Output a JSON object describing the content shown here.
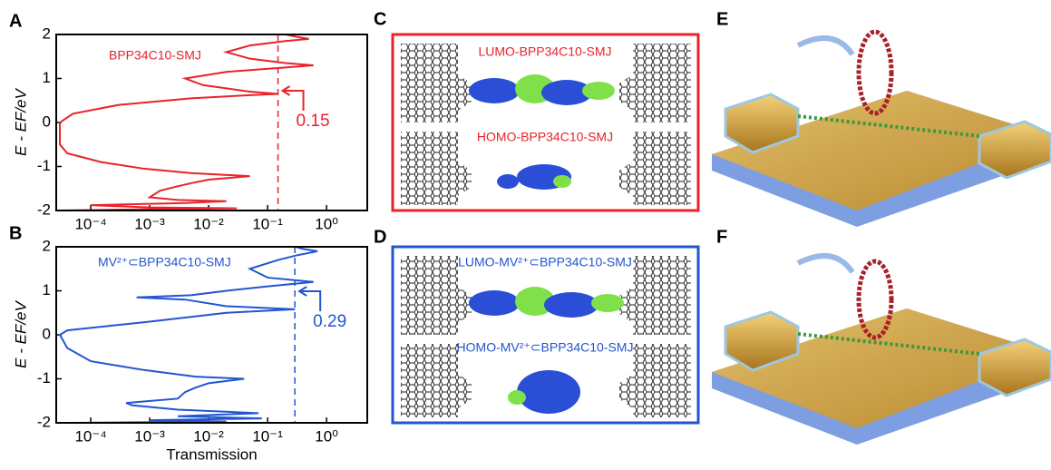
{
  "chart_data": [
    {
      "type": "line",
      "panel_label": "A",
      "xscale": "log",
      "ylabel": "E - EF/eV",
      "xlim": [
        2.6e-05,
        4.9
      ],
      "ylim": [
        -2,
        2
      ],
      "xticks": [
        {
          "value": 0.0001,
          "label": "10⁻⁴"
        },
        {
          "value": 0.001,
          "label": "10⁻³"
        },
        {
          "value": 0.01,
          "label": "10⁻²"
        },
        {
          "value": 0.1,
          "label": "10⁻¹"
        },
        {
          "value": 1,
          "label": "10⁰"
        }
      ],
      "yticks": [
        -2,
        -1,
        0,
        1,
        2
      ],
      "reference_line": {
        "value": 0.15,
        "label": "0.15"
      },
      "series": [
        {
          "name": "BPP34C10-SMJ",
          "color": "#e8232a",
          "x": [
            3e-05,
            0.001,
            0.03,
            0.001,
            0.0001,
            0.004,
            0.02,
            0.003,
            0.001,
            0.0015,
            0.003,
            0.005,
            0.01,
            0.05,
            0.005,
            0.0008,
            0.00015,
            4e-05,
            3e-05,
            3e-05,
            5e-05,
            0.0003,
            0.005,
            0.05,
            0.15,
            0.05,
            0.008,
            0.004,
            0.02,
            0.2,
            0.6,
            0.2,
            0.05,
            0.02,
            0.05,
            0.2,
            0.5,
            0.3,
            0.2
          ],
          "values": [
            -2.0,
            -1.97,
            -1.95,
            -1.93,
            -1.88,
            -1.83,
            -1.79,
            -1.76,
            -1.7,
            -1.55,
            -1.45,
            -1.38,
            -1.3,
            -1.22,
            -1.15,
            -1.05,
            -0.9,
            -0.7,
            -0.5,
            0.0,
            0.2,
            0.4,
            0.55,
            0.62,
            0.65,
            0.7,
            0.85,
            1.0,
            1.15,
            1.25,
            1.3,
            1.35,
            1.45,
            1.6,
            1.75,
            1.85,
            1.9,
            1.95,
            2.0
          ]
        }
      ]
    },
    {
      "type": "line",
      "panel_label": "B",
      "xscale": "log",
      "ylabel": "E - EF/eV",
      "xlabel": "Transmission",
      "xlim": [
        2.6e-05,
        4.9
      ],
      "ylim": [
        -2,
        2
      ],
      "xticks": [
        {
          "value": 0.0001,
          "label": "10⁻⁴"
        },
        {
          "value": 0.001,
          "label": "10⁻³"
        },
        {
          "value": 0.01,
          "label": "10⁻²"
        },
        {
          "value": 0.1,
          "label": "10⁻¹"
        },
        {
          "value": 1,
          "label": "10⁰"
        }
      ],
      "yticks": [
        -2,
        -1,
        0,
        1,
        2
      ],
      "reference_line": {
        "value": 0.29,
        "label": "0.29"
      },
      "series": [
        {
          "name": "MV²⁺⊂BPP34C10-SMJ",
          "color": "#2255d0",
          "x": [
            5e-05,
            0.02,
            0.001,
            0.08,
            0.003,
            0.07,
            0.003,
            0.0005,
            0.0004,
            0.003,
            0.004,
            0.006,
            0.01,
            0.04,
            0.006,
            0.0008,
            0.0001,
            4e-05,
            3e-05,
            4e-05,
            0.001,
            0.02,
            0.29,
            0.02,
            0.004,
            0.0006,
            0.005,
            0.02,
            0.1,
            0.6,
            0.1,
            0.05,
            0.15,
            0.3,
            0.7,
            0.4,
            0.3
          ],
          "values": [
            -2.0,
            -1.97,
            -1.94,
            -1.9,
            -1.85,
            -1.78,
            -1.7,
            -1.6,
            -1.55,
            -1.45,
            -1.3,
            -1.2,
            -1.1,
            -1.0,
            -0.95,
            -0.8,
            -0.6,
            -0.3,
            0.0,
            0.1,
            0.3,
            0.5,
            0.58,
            0.65,
            0.8,
            0.85,
            0.9,
            1.0,
            1.1,
            1.2,
            1.3,
            1.5,
            1.7,
            1.8,
            1.9,
            1.95,
            2.0
          ]
        }
      ]
    }
  ],
  "panels": {
    "C": {
      "label": "C",
      "lumo": "LUMO-BPP34C10-SMJ",
      "homo": "HOMO-BPP34C10-SMJ"
    },
    "D": {
      "label": "D",
      "lumo": "LUMO-MV²⁺⊂BPP34C10-SMJ",
      "homo": "HOMO-MV²⁺⊂BPP34C10-SMJ"
    },
    "E": {
      "label": "E"
    },
    "F": {
      "label": "F"
    }
  }
}
